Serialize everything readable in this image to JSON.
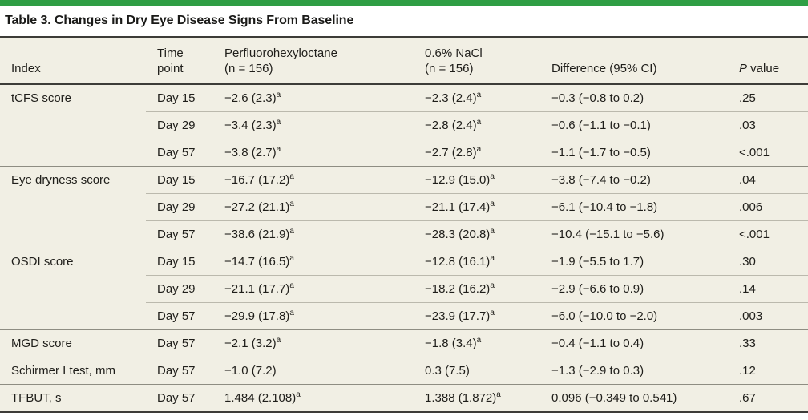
{
  "colors": {
    "accent_green": "#2f9e44",
    "table_background": "#f1efe4",
    "dark_rule": "#3d3c38",
    "row_divider": "#bbb9ad",
    "group_divider": "#8e8d82",
    "text": "#1f1e1a"
  },
  "title": "Table 3. Changes in Dry Eye Disease Signs From Baseline",
  "header": {
    "index": "Index",
    "time_line1": "Time",
    "time_line2": "point",
    "drug_line1": "Perfluorohexyloctane",
    "drug_line2": "(n = 156)",
    "nacl_line1": "0.6% NaCl",
    "nacl_line2": "(n = 156)",
    "difference": "Difference (95% CI)",
    "p_italic": "P",
    "p_rest": " value"
  },
  "groups": [
    {
      "index": "tCFS score",
      "rows": [
        {
          "time": "Day 15",
          "drug": "−2.6 (2.3)",
          "drug_sup": "a",
          "nacl": "−2.3 (2.4)",
          "nacl_sup": "a",
          "difference": "−0.3 (−0.8 to 0.2)",
          "p_value": ".25"
        },
        {
          "time": "Day 29",
          "drug": "−3.4 (2.3)",
          "drug_sup": "a",
          "nacl": "−2.8 (2.4)",
          "nacl_sup": "a",
          "difference": "−0.6 (−1.1 to −0.1)",
          "p_value": ".03"
        },
        {
          "time": "Day 57",
          "drug": "−3.8 (2.7)",
          "drug_sup": "a",
          "nacl": "−2.7 (2.8)",
          "nacl_sup": "a",
          "difference": "−1.1 (−1.7 to −0.5)",
          "p_value": "<.001"
        }
      ]
    },
    {
      "index": "Eye dryness score",
      "rows": [
        {
          "time": "Day 15",
          "drug": "−16.7 (17.2)",
          "drug_sup": "a",
          "nacl": "−12.9 (15.0)",
          "nacl_sup": "a",
          "difference": "−3.8 (−7.4 to −0.2)",
          "p_value": ".04"
        },
        {
          "time": "Day 29",
          "drug": "−27.2 (21.1)",
          "drug_sup": "a",
          "nacl": "−21.1 (17.4)",
          "nacl_sup": "a",
          "difference": "−6.1 (−10.4 to −1.8)",
          "p_value": ".006"
        },
        {
          "time": "Day 57",
          "drug": "−38.6 (21.9)",
          "drug_sup": "a",
          "nacl": "−28.3 (20.8)",
          "nacl_sup": "a",
          "difference": "−10.4 (−15.1 to −5.6)",
          "p_value": "<.001"
        }
      ]
    },
    {
      "index": "OSDI score",
      "rows": [
        {
          "time": "Day 15",
          "drug": "−14.7 (16.5)",
          "drug_sup": "a",
          "nacl": "−12.8 (16.1)",
          "nacl_sup": "a",
          "difference": "−1.9 (−5.5 to 1.7)",
          "p_value": ".30"
        },
        {
          "time": "Day 29",
          "drug": "−21.1 (17.7)",
          "drug_sup": "a",
          "nacl": "−18.2 (16.2)",
          "nacl_sup": "a",
          "difference": "−2.9 (−6.6 to 0.9)",
          "p_value": ".14"
        },
        {
          "time": "Day 57",
          "drug": "−29.9 (17.8)",
          "drug_sup": "a",
          "nacl": "−23.9 (17.7)",
          "nacl_sup": "a",
          "difference": "−6.0 (−10.0 to −2.0)",
          "p_value": ".003"
        }
      ]
    },
    {
      "index": "MGD score",
      "rows": [
        {
          "time": "Day 57",
          "drug": "−2.1 (3.2)",
          "drug_sup": "a",
          "nacl": "−1.8 (3.4)",
          "nacl_sup": "a",
          "difference": "−0.4 (−1.1 to 0.4)",
          "p_value": ".33"
        }
      ]
    },
    {
      "index": "Schirmer I test, mm",
      "rows": [
        {
          "time": "Day 57",
          "drug": "−1.0 (7.2)",
          "drug_sup": "",
          "nacl": "0.3 (7.5)",
          "nacl_sup": "",
          "difference": "−1.3 (−2.9 to 0.3)",
          "p_value": ".12"
        }
      ]
    },
    {
      "index": "TFBUT, s",
      "rows": [
        {
          "time": "Day 57",
          "drug": "1.484 (2.108)",
          "drug_sup": "a",
          "nacl": "1.388 (1.872)",
          "nacl_sup": "a",
          "difference": "0.096 (−0.349 to 0.541)",
          "p_value": ".67"
        }
      ]
    }
  ]
}
